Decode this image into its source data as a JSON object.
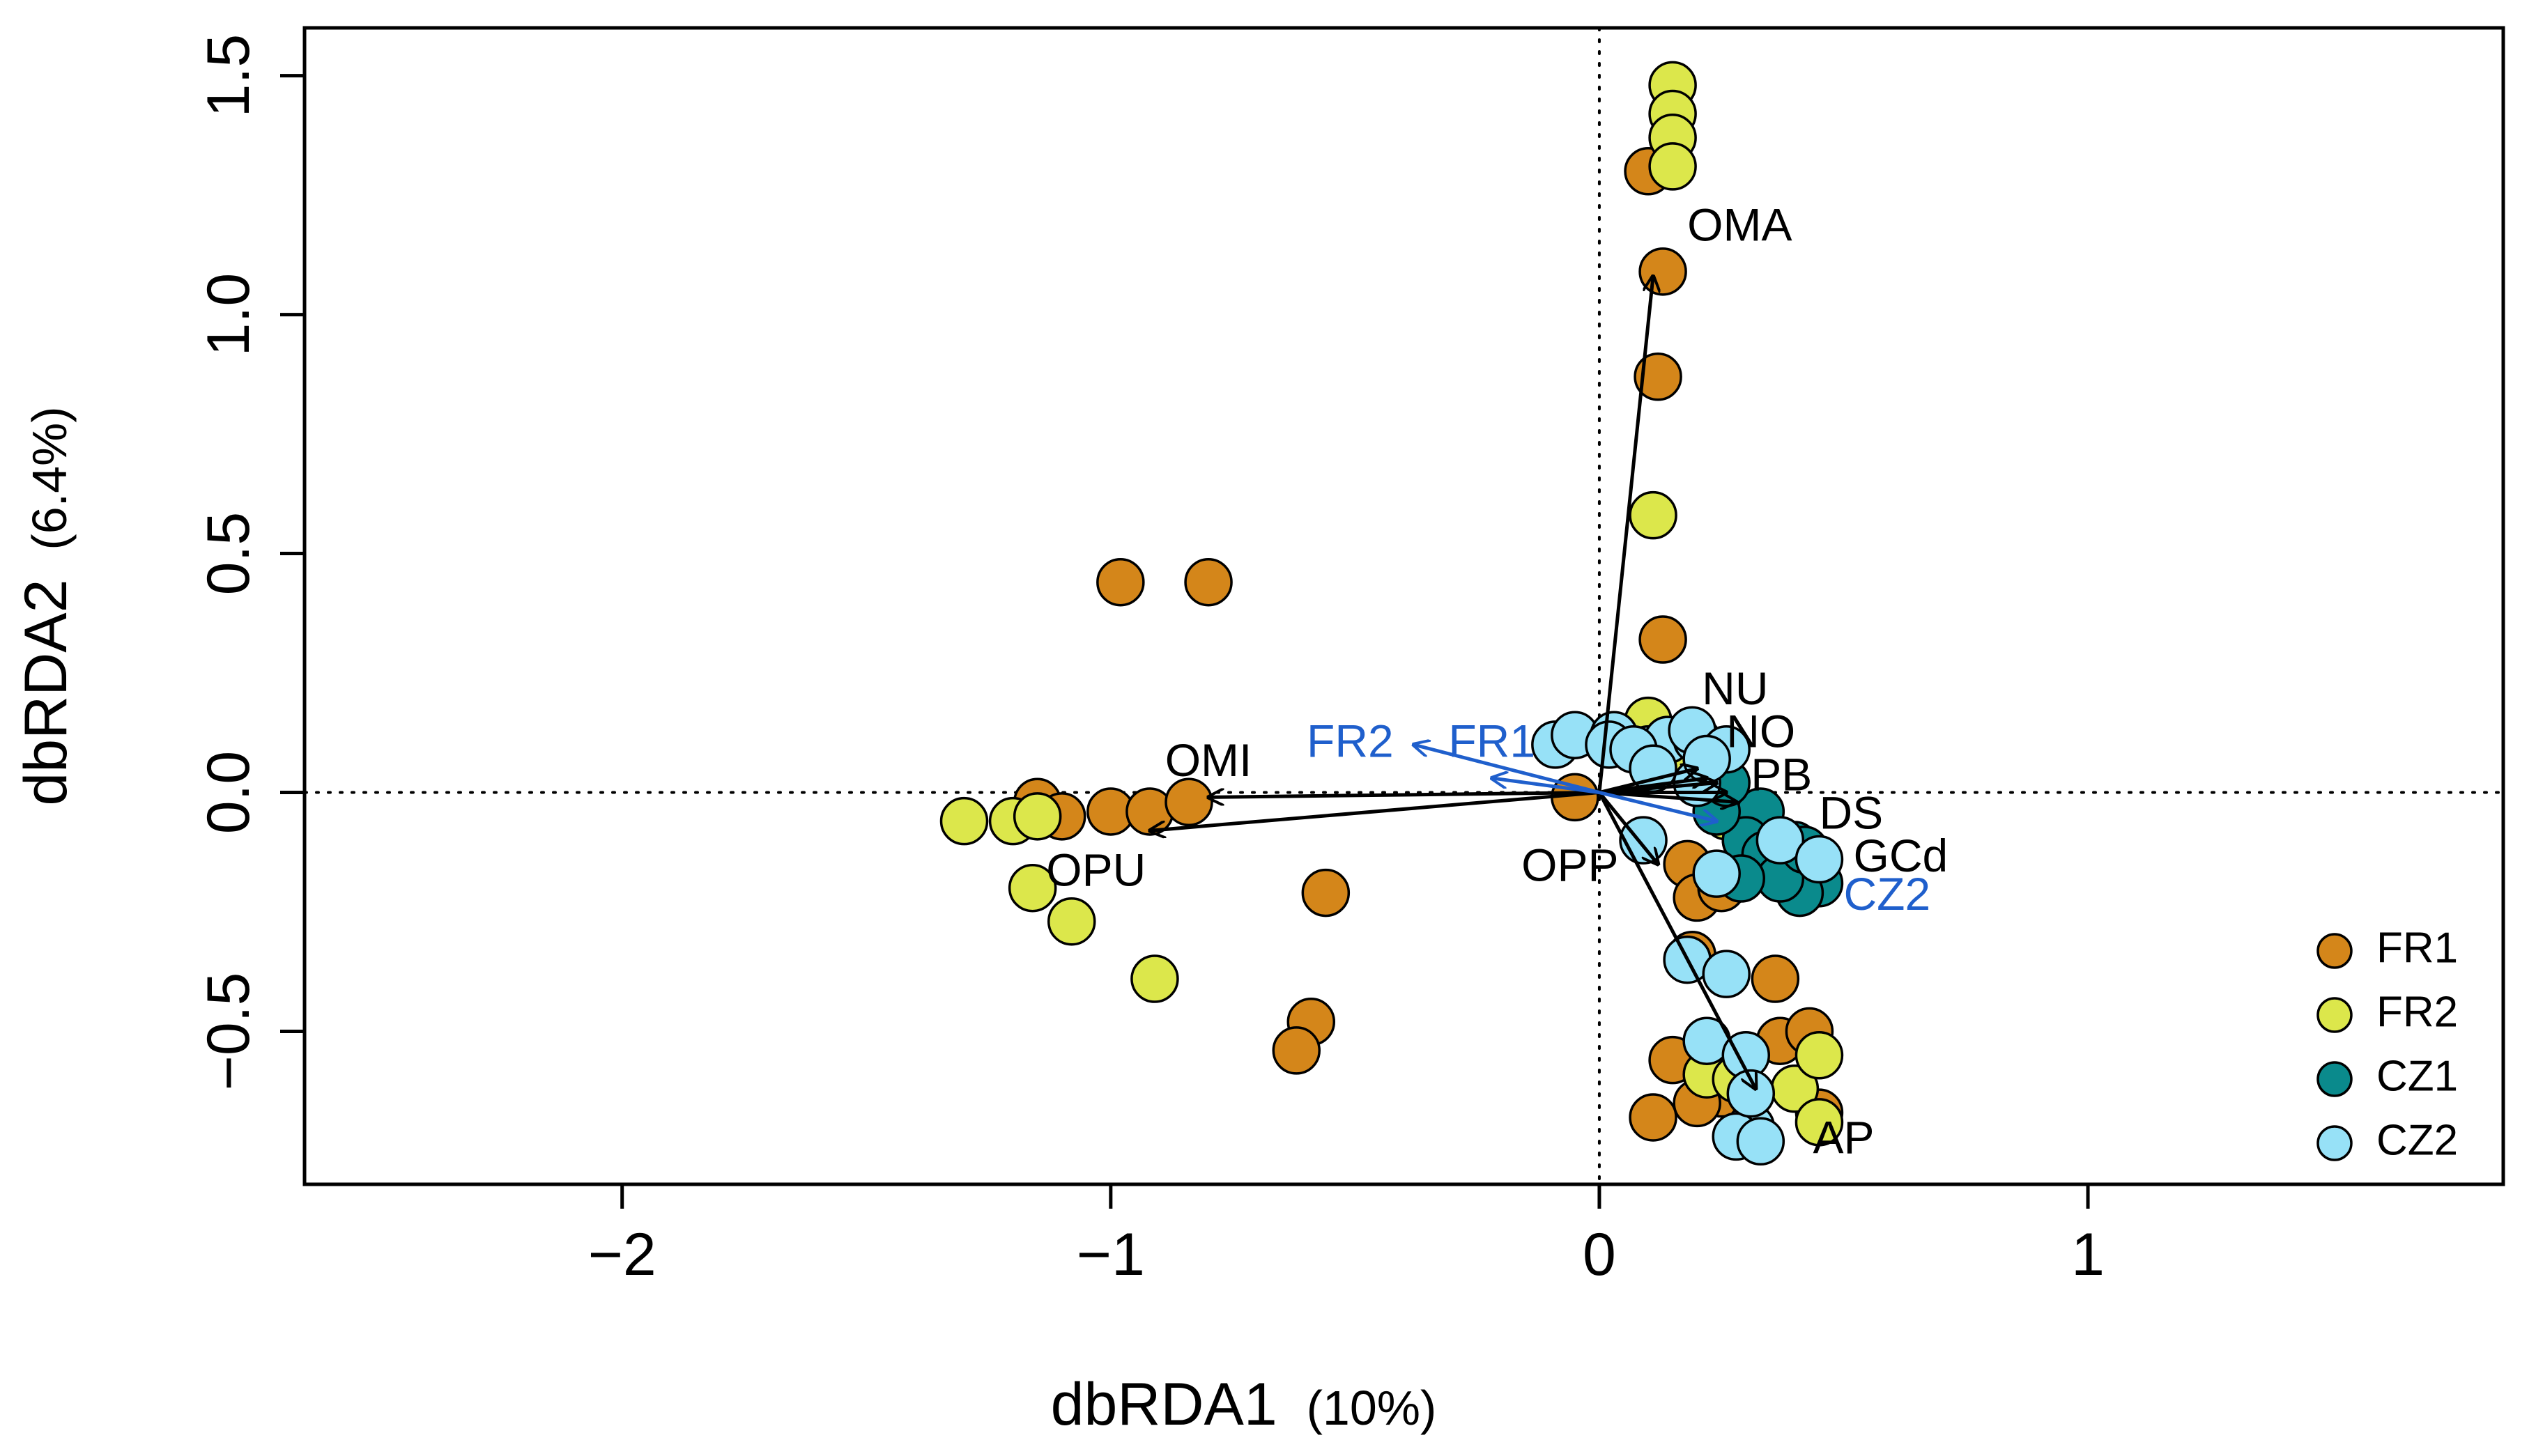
{
  "chart_data": {
    "type": "scatter",
    "title": "",
    "xlabel": {
      "main": "dbRDA1",
      "pct": "(10%)"
    },
    "ylabel": {
      "main": "dbRDA2",
      "pct": "(6.4%)"
    },
    "xlim": [
      -2.65,
      1.85
    ],
    "ylim": [
      -0.82,
      1.6
    ],
    "xticks": [
      -2,
      -1,
      0,
      1
    ],
    "yticks": [
      -0.5,
      0.0,
      0.5,
      1.0,
      1.5
    ],
    "xtick_labels": [
      "−2",
      "−1",
      "0",
      "1"
    ],
    "ytick_labels": [
      "−0.5",
      "0.0",
      "0.5",
      "1.0",
      "1.5"
    ],
    "reference_lines": {
      "x0": true,
      "y0": true,
      "style": "dotted"
    },
    "legend": {
      "position": "bottom-right"
    },
    "series": [
      {
        "name": "FR1",
        "color": "#D4861A",
        "points": [
          [
            0.1,
            1.3
          ],
          [
            0.13,
            1.09
          ],
          [
            0.12,
            0.87
          ],
          [
            0.13,
            0.32
          ],
          [
            -0.98,
            0.44
          ],
          [
            -0.8,
            0.44
          ],
          [
            -1.15,
            -0.02
          ],
          [
            -1.1,
            -0.05
          ],
          [
            -1.0,
            -0.04
          ],
          [
            -0.92,
            -0.04
          ],
          [
            -0.84,
            -0.02
          ],
          [
            -0.56,
            -0.21
          ],
          [
            -0.59,
            -0.48
          ],
          [
            -0.62,
            -0.54
          ],
          [
            -0.05,
            -0.01
          ],
          [
            0.18,
            -0.15
          ],
          [
            0.2,
            -0.22
          ],
          [
            0.25,
            -0.2
          ],
          [
            0.19,
            -0.34
          ],
          [
            0.36,
            -0.39
          ],
          [
            0.37,
            -0.52
          ],
          [
            0.43,
            -0.5
          ],
          [
            0.15,
            -0.56
          ],
          [
            0.25,
            -0.63
          ],
          [
            0.2,
            -0.65
          ],
          [
            0.11,
            -0.68
          ],
          [
            0.45,
            -0.67
          ],
          [
            0.3,
            -0.1
          ]
        ]
      },
      {
        "name": "FR2",
        "color": "#DCE74B",
        "points": [
          [
            0.15,
            1.48
          ],
          [
            0.15,
            1.42
          ],
          [
            0.15,
            1.37
          ],
          [
            0.15,
            1.31
          ],
          [
            0.11,
            0.58
          ],
          [
            0.1,
            0.15
          ],
          [
            0.2,
            0.05
          ],
          [
            -1.3,
            -0.06
          ],
          [
            -1.2,
            -0.06
          ],
          [
            -1.15,
            -0.05
          ],
          [
            -1.16,
            -0.2
          ],
          [
            -1.08,
            -0.27
          ],
          [
            -0.91,
            -0.39
          ],
          [
            0.22,
            -0.59
          ],
          [
            0.4,
            -0.62
          ],
          [
            0.45,
            -0.55
          ],
          [
            0.45,
            -0.69
          ],
          [
            0.28,
            -0.6
          ],
          [
            0.26,
            -0.05
          ],
          [
            0.35,
            -0.12
          ]
        ]
      },
      {
        "name": "CZ1",
        "color": "#0A8A8C",
        "points": [
          [
            0.33,
            -0.04
          ],
          [
            0.3,
            -0.1
          ],
          [
            0.34,
            -0.13
          ],
          [
            0.4,
            -0.11
          ],
          [
            0.44,
            -0.15
          ],
          [
            0.45,
            -0.19
          ],
          [
            0.41,
            -0.21
          ],
          [
            0.37,
            -0.18
          ],
          [
            0.29,
            -0.18
          ],
          [
            0.24,
            -0.04
          ],
          [
            0.26,
            0.02
          ],
          [
            0.22,
            0.08
          ],
          [
            0.42,
            -0.12
          ]
        ]
      },
      {
        "name": "CZ2",
        "color": "#97E1F7",
        "points": [
          [
            -0.09,
            0.1
          ],
          [
            -0.05,
            0.12
          ],
          [
            0.03,
            0.12
          ],
          [
            0.02,
            0.1
          ],
          [
            0.1,
            0.09
          ],
          [
            0.14,
            0.11
          ],
          [
            0.2,
            0.11
          ],
          [
            0.19,
            0.13
          ],
          [
            0.26,
            0.09
          ],
          [
            0.07,
            0.09
          ],
          [
            0.11,
            0.05
          ],
          [
            0.2,
            0.02
          ],
          [
            0.22,
            0.07
          ],
          [
            0.09,
            -0.1
          ],
          [
            0.37,
            -0.1
          ],
          [
            0.45,
            -0.14
          ],
          [
            0.24,
            -0.17
          ],
          [
            0.18,
            -0.35
          ],
          [
            0.26,
            -0.38
          ],
          [
            0.22,
            -0.52
          ],
          [
            0.3,
            -0.55
          ],
          [
            0.31,
            -0.7
          ],
          [
            0.28,
            -0.72
          ],
          [
            0.33,
            -0.73
          ],
          [
            0.31,
            -0.63
          ]
        ]
      }
    ],
    "vectors": [
      {
        "label": "OMA",
        "end": [
          0.11,
          1.08
        ],
        "color": "#000000",
        "label_pos": [
          0.18,
          1.18
        ],
        "anchor": "start"
      },
      {
        "label": "OMI",
        "end": [
          -0.8,
          -0.01
        ],
        "color": "#000000",
        "label_pos": [
          -0.8,
          0.06
        ],
        "anchor": "middle"
      },
      {
        "label": "OPU",
        "end": [
          -0.92,
          -0.08
        ],
        "color": "#000000",
        "label_pos": [
          -1.03,
          -0.17
        ],
        "anchor": "middle"
      },
      {
        "label": "OPP",
        "end": [
          0.12,
          -0.15
        ],
        "color": "#000000",
        "label_pos": [
          -0.06,
          -0.16
        ],
        "anchor": "middle"
      },
      {
        "label": "AP",
        "end": [
          0.32,
          -0.62
        ],
        "color": "#000000",
        "label_pos": [
          0.5,
          -0.73
        ],
        "anchor": "middle"
      },
      {
        "label": "NU",
        "end": [
          0.2,
          0.05
        ],
        "color": "#000000",
        "label_pos": [
          0.21,
          0.21
        ],
        "anchor": "start"
      },
      {
        "label": "NO",
        "end": [
          0.22,
          0.03
        ],
        "color": "#000000",
        "label_pos": [
          0.26,
          0.12
        ],
        "anchor": "start"
      },
      {
        "label": "PB",
        "end": [
          0.24,
          0.02
        ],
        "color": "#000000",
        "label_pos": [
          0.31,
          0.03
        ],
        "anchor": "start"
      },
      {
        "label": "DS",
        "end": [
          0.26,
          0.0
        ],
        "color": "#000000",
        "label_pos": [
          0.45,
          -0.05
        ],
        "anchor": "start"
      },
      {
        "label": "GCd",
        "end": [
          0.28,
          -0.02
        ],
        "color": "#000000",
        "label_pos": [
          0.52,
          -0.14
        ],
        "anchor": "start"
      },
      {
        "label": "FR2",
        "end": [
          -0.38,
          0.1
        ],
        "color": "#1F5FCC",
        "label_pos": [
          -0.51,
          0.1
        ],
        "anchor": "middle"
      },
      {
        "label": "FR1",
        "end": [
          -0.22,
          0.03
        ],
        "color": "#1F5FCC",
        "label_pos": [
          -0.22,
          0.1
        ],
        "anchor": "middle"
      },
      {
        "label": "CZ2",
        "end": [
          0.24,
          -0.06
        ],
        "color": "#1F5FCC",
        "label_pos": [
          0.5,
          -0.22
        ],
        "anchor": "start"
      }
    ]
  }
}
